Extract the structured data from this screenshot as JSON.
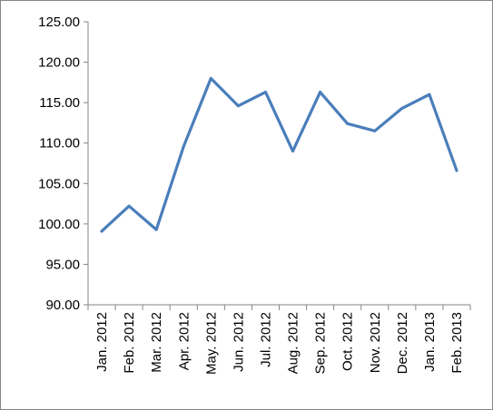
{
  "chart_data": {
    "type": "line",
    "categories": [
      "Jan. 2012",
      "Feb. 2012",
      "Mar. 2012",
      "Apr. 2012",
      "May. 2012",
      "Jun. 2012",
      "Jul. 2012",
      "Aug. 2012",
      "Sep. 2012",
      "Oct. 2012",
      "Nov. 2012",
      "Dec. 2012",
      "Jan. 2013",
      "Feb. 2013"
    ],
    "series": [
      {
        "values": [
          99.1,
          102.2,
          99.3,
          109.6,
          118.0,
          114.6,
          116.3,
          109.0,
          116.3,
          112.4,
          111.5,
          114.3,
          116.0,
          106.6
        ],
        "color": "#4a7ebb"
      }
    ],
    "ylim": [
      90,
      125
    ],
    "yticks": [
      "90.00",
      "95.00",
      "100.00",
      "105.00",
      "110.00",
      "115.00",
      "120.00",
      "125.00"
    ],
    "grid": false,
    "legend": "none",
    "title": "",
    "xlabel": "",
    "ylabel": ""
  }
}
